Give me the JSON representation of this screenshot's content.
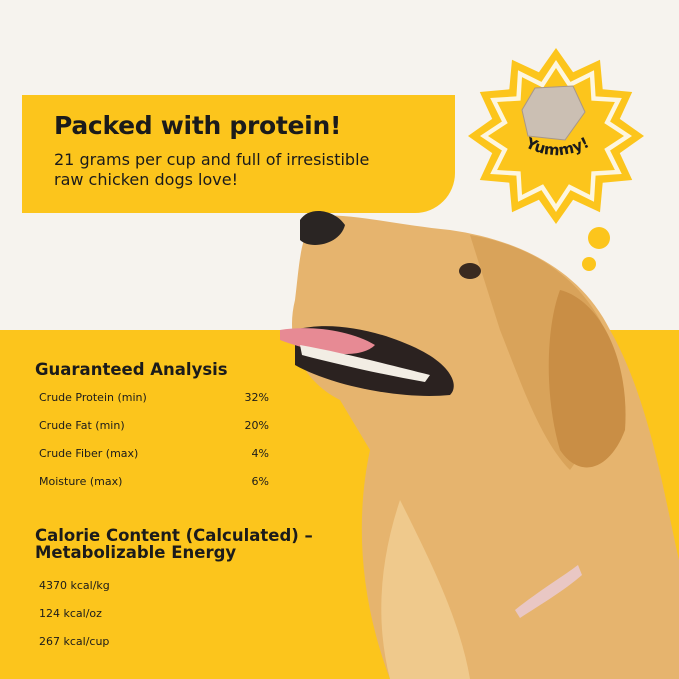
{
  "banner": {
    "title": "Packed with protein!",
    "subtitle": "21 grams per cup and full of irresistible raw chicken dogs love!"
  },
  "badge": {
    "text": "Yummy!"
  },
  "analysis": {
    "title": "Guaranteed Analysis",
    "rows": [
      {
        "label": "Crude Protein (min)",
        "value": "32%"
      },
      {
        "label": "Crude Fat (min)",
        "value": "20%"
      },
      {
        "label": "Crude Fiber (max)",
        "value": "4%"
      },
      {
        "label": "Moisture (max)",
        "value": "6%"
      }
    ]
  },
  "calories": {
    "title": "Calorie Content (Calculated) – Metabolizable Energy",
    "items": [
      "4370 kcal/kg",
      "124 kcal/oz",
      "267 kcal/cup"
    ]
  },
  "colors": {
    "yellow": "#fcc51c",
    "background": "#f6f3ee",
    "text": "#1b1b1b"
  }
}
